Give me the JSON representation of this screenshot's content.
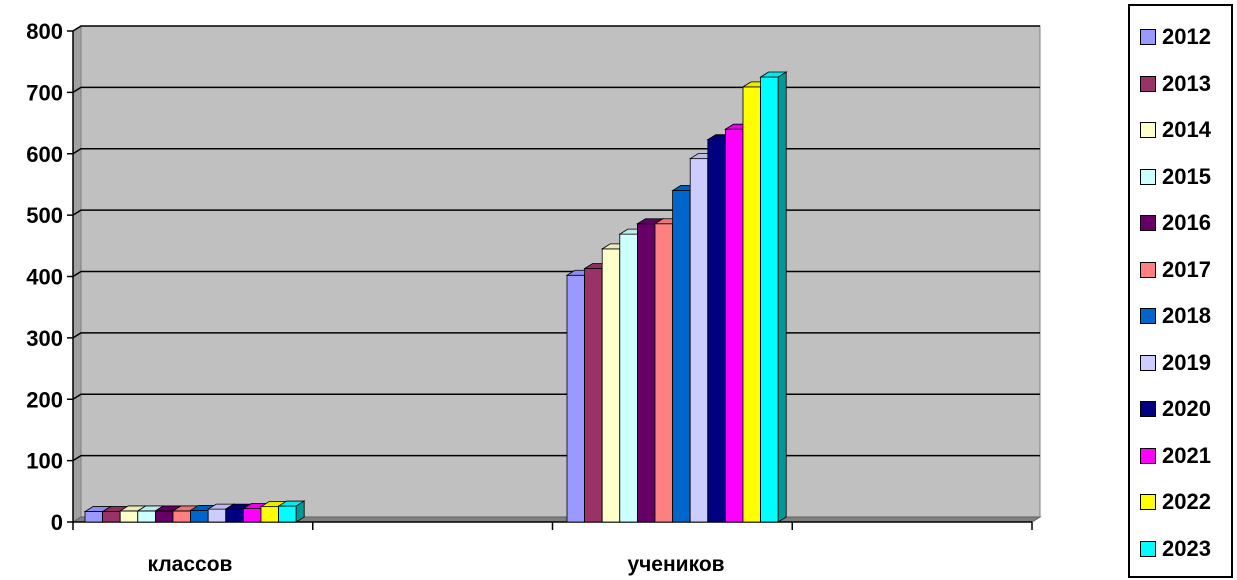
{
  "chart_data": {
    "type": "bar",
    "categories": [
      "классов",
      "учеников"
    ],
    "yticks": [
      "0",
      "100",
      "200",
      "300",
      "400",
      "500",
      "600",
      "700",
      "800"
    ],
    "ylim": [
      0,
      800
    ],
    "legend_position": "right",
    "grid": true,
    "series": [
      {
        "name": "2012",
        "color": "#9999ff",
        "values": [
          17,
          402
        ]
      },
      {
        "name": "2013",
        "color": "#993366",
        "values": [
          17,
          413
        ]
      },
      {
        "name": "2014",
        "color": "#ffffcc",
        "values": [
          18,
          445
        ]
      },
      {
        "name": "2015",
        "color": "#ccffff",
        "values": [
          18,
          469
        ]
      },
      {
        "name": "2016",
        "color": "#660066",
        "values": [
          18,
          486
        ]
      },
      {
        "name": "2017",
        "color": "#ff8080",
        "values": [
          18,
          486
        ]
      },
      {
        "name": "2018",
        "color": "#0066cc",
        "values": [
          19,
          540
        ]
      },
      {
        "name": "2019",
        "color": "#ccccff",
        "values": [
          21,
          592
        ]
      },
      {
        "name": "2020",
        "color": "#000080",
        "values": [
          21,
          623
        ]
      },
      {
        "name": "2021",
        "color": "#ff00ff",
        "values": [
          22,
          640
        ]
      },
      {
        "name": "2022",
        "color": "#ffff00",
        "values": [
          25,
          709
        ]
      },
      {
        "name": "2023",
        "color": "#00ffff",
        "values": [
          26,
          725
        ]
      }
    ]
  }
}
